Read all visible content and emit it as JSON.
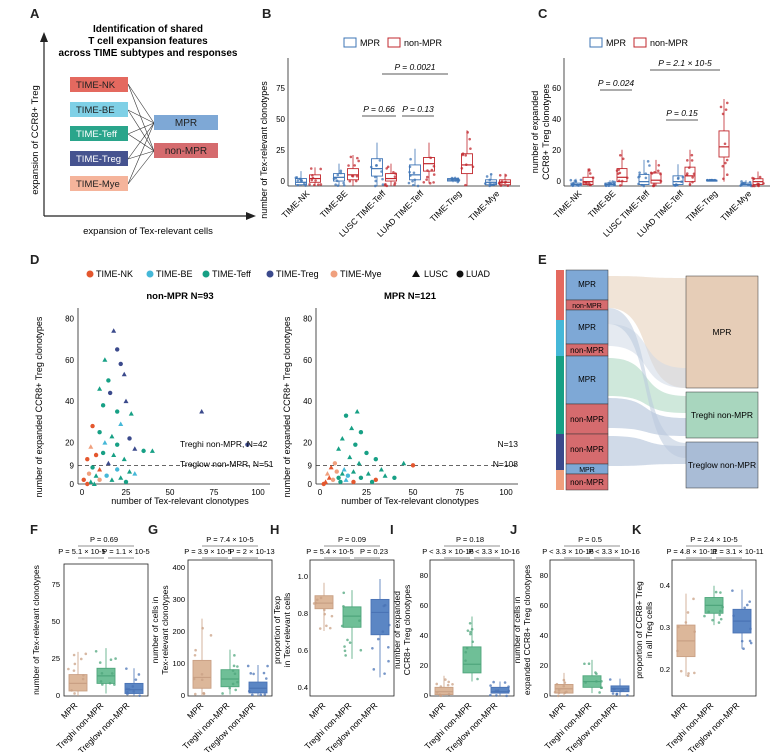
{
  "panels": {
    "A": {
      "label": "A",
      "title_lines": [
        "Identification of shared",
        "T cell expansion features",
        "across TIME subtypes and responses"
      ],
      "subtypes": [
        "TIME-NK",
        "TIME-BE",
        "TIME-Teff",
        "TIME-Treg",
        "TIME-Mye"
      ],
      "responses": [
        "MPR",
        "non-MPR"
      ],
      "ylabel": "expansion of CCR8+ Treg",
      "xlabel": "expansion of Tex-relevant cells"
    },
    "B": {
      "label": "B",
      "legend": [
        "MPR",
        "non-MPR"
      ],
      "ylabel": "number of Tex-relevant clonotypes",
      "categories": [
        "TIME-NK",
        "TIME-BE",
        "LUSC TIME-Teff",
        "LUAD TIME-Teff",
        "TIME-Treg",
        "TIME-Mye"
      ],
      "pvals": [
        "P = 0.66",
        "P = 0.13",
        "P = 0.0021"
      ],
      "yticks": [
        "0",
        "25",
        "50",
        "75"
      ]
    },
    "C": {
      "label": "C",
      "legend": [
        "MPR",
        "non-MPR"
      ],
      "ylabel_lines": [
        "number of expanded",
        "CCR8+ Treg clonotypes"
      ],
      "categories": [
        "TIME-NK",
        "TIME-BE",
        "LUSC TIME-Teff",
        "LUAD TIME-Teff",
        "TIME-Treg",
        "TIME-Mye"
      ],
      "pvals": [
        "P = 0.024",
        "P = 0.15",
        "P = 2.1 × 10-5"
      ],
      "yticks": [
        "0",
        "20",
        "40",
        "60"
      ]
    },
    "D": {
      "label": "D",
      "legend": [
        "TIME-NK",
        "TIME-BE",
        "TIME-Teff",
        "TIME-Treg",
        "TIME-Mye",
        "LUSC",
        "LUAD"
      ],
      "left_title": "non-MPR N=93",
      "right_title": "MPR N=121",
      "left_annot": [
        "Treghi non-MPR, N=42",
        "Treglow non-MPR, N=51"
      ],
      "right_annot": [
        "N=13",
        "N=108"
      ],
      "ylabel": "number of expanded CCR8+ Treg clonotypes",
      "xlabel": "number of Tex-relevant clonotypes",
      "yticks": [
        "0",
        "9",
        "20",
        "40",
        "60",
        "80"
      ],
      "xticks": [
        "0",
        "25",
        "50",
        "75",
        "100"
      ]
    },
    "E": {
      "label": "E",
      "left_nodes": [
        "MPR",
        "non-MPR",
        "MPR",
        "non-MPR",
        "MPR",
        "non-MPR",
        "non-MPR",
        "MPR",
        "non-MPR"
      ],
      "right_nodes": [
        "MPR",
        "Treghi non-MPR",
        "Treglow non-MPR"
      ]
    },
    "F": {
      "label": "F",
      "ylabel": "number of Tex-relevant clonotypes",
      "pvals": [
        "P = 0.69",
        "P = 5.1 × 10-5",
        "P = 1.1 × 10-5"
      ],
      "categories": [
        "MPR",
        "Treghi non-MPR",
        "Treglow non-MPR"
      ],
      "yticks": [
        "0",
        "25",
        "50",
        "75"
      ]
    },
    "G": {
      "label": "G",
      "ylabel_lines": [
        "number of cells in",
        "Tex-relevant clonotypes"
      ],
      "pvals": [
        "P = 7.4 × 10-5",
        "P = 3.9 × 10-5",
        "P = 2 × 10-13"
      ],
      "categories": [
        "MPR",
        "Treghi non-MPR",
        "Treglow non-MPR"
      ],
      "yticks": [
        "0",
        "100",
        "200",
        "300",
        "400"
      ]
    },
    "H": {
      "label": "H",
      "ylabel_lines": [
        "proportion of Texp",
        "in Tex-relevant cells"
      ],
      "pvals": [
        "P = 0.09",
        "P = 5.4 × 10-5",
        "P = 0.23"
      ],
      "categories": [
        "MPR",
        "Treghi non-MPR",
        "Treglow non-MPR"
      ],
      "yticks": [
        "0.4",
        "0.6",
        "0.8",
        "1.0"
      ]
    },
    "I": {
      "label": "I",
      "ylabel_lines": [
        "number of expanded",
        "CCR8+ Treg clonotypes"
      ],
      "pvals": [
        "P = 0.18",
        "P < 3.3 × 10-16",
        "P < 3.3 × 10-16"
      ],
      "categories": [
        "MPR",
        "Treghi non-MPR",
        "Treglow non-MPR"
      ],
      "yticks": [
        "0",
        "20",
        "40",
        "60",
        "80"
      ]
    },
    "J": {
      "label": "J",
      "ylabel_lines": [
        "number of cells in",
        "expanded CCR8+ Treg clonotypes"
      ],
      "pvals": [
        "P = 0.5",
        "P < 3.3 × 10-16",
        "P < 3.3 × 10-16"
      ],
      "categories": [
        "MPR",
        "Treghi non-MPR",
        "Treglow non-MPR"
      ],
      "yticks": [
        "0",
        "20",
        "40",
        "60",
        "80"
      ]
    },
    "K": {
      "label": "K",
      "ylabel_lines": [
        "proportion of CCR8+ Treg",
        "in all Treg cells"
      ],
      "pvals": [
        "P = 2.4 × 10-5",
        "P = 4.8 × 10-11",
        "P = 3.1 × 10-11"
      ],
      "categories": [
        "MPR",
        "Treghi non-MPR",
        "Treglow non-MPR"
      ],
      "yticks": [
        "0.2",
        "0.3",
        "0.4"
      ]
    }
  },
  "colors": {
    "mpr": "#3e74b5",
    "nonmpr": "#c1272d",
    "nk": "#e4572e",
    "be": "#45b8d8",
    "teff": "#17a085",
    "treg": "#3b4a8c",
    "mye": "#f0a07e",
    "mprBox": "#dcb79a",
    "hiBox": "#6fbf97",
    "lowBox": "#5b86c4"
  },
  "chart_data": [
    {
      "type": "box",
      "panel": "B",
      "title": "",
      "ylabel": "number of Tex-relevant clonotypes",
      "categories": [
        "TIME-NK",
        "TIME-BE",
        "LUSC TIME-Teff",
        "LUAD TIME-Teff",
        "TIME-Treg",
        "TIME-Mye"
      ],
      "ylim": [
        0,
        100
      ],
      "series": [
        {
          "name": "MPR",
          "boxes": [
            [
              0,
              1,
              3,
              6,
              12
            ],
            [
              0,
              4,
              7,
              10,
              18
            ],
            [
              0,
              8,
              14,
              22,
              35
            ],
            [
              0,
              5,
              9,
              17,
              30
            ],
            [
              3,
              4,
              5,
              6,
              7
            ],
            [
              0,
              1,
              3,
              5,
              10
            ]
          ]
        },
        {
          "name": "non-MPR",
          "boxes": [
            [
              0,
              3,
              6,
              9,
              15
            ],
            [
              0,
              5,
              9,
              14,
              25
            ],
            [
              0,
              4,
              6,
              10,
              18
            ],
            [
              2,
              12,
              18,
              23,
              35
            ],
            [
              0,
              10,
              17,
              26,
              45
            ],
            [
              0,
              1,
              3,
              5,
              10
            ]
          ]
        }
      ]
    },
    {
      "type": "box",
      "panel": "C",
      "ylabel": "number of expanded CCR8+ Treg clonotypes",
      "categories": [
        "TIME-NK",
        "TIME-BE",
        "LUSC TIME-Teff",
        "LUAD TIME-Teff",
        "TIME-Treg",
        "TIME-Mye"
      ],
      "ylim": [
        0,
        80
      ],
      "series": [
        {
          "name": "MPR",
          "boxes": [
            [
              0,
              0,
              1,
              2,
              5
            ],
            [
              0,
              0,
              1,
              2,
              4
            ],
            [
              0,
              1,
              3,
              8,
              18
            ],
            [
              0,
              1,
              3,
              7,
              15
            ],
            [
              4,
              4,
              4,
              4,
              4
            ],
            [
              0,
              0,
              1,
              2,
              4
            ]
          ]
        },
        {
          "name": "non-MPR",
          "boxes": [
            [
              0,
              1,
              3,
              6,
              12
            ],
            [
              0,
              3,
              6,
              12,
              25
            ],
            [
              0,
              2,
              4,
              9,
              18
            ],
            [
              0,
              3,
              7,
              13,
              25
            ],
            [
              3,
              20,
              27,
              38,
              60
            ],
            [
              0,
              1,
              3,
              5,
              10
            ]
          ]
        }
      ]
    },
    {
      "type": "scatter",
      "panel": "D-left",
      "title": "non-MPR N=93",
      "xlabel": "number of Tex-relevant clonotypes",
      "ylabel": "number of expanded CCR8+ Treg clonotypes",
      "xlim": [
        0,
        100
      ],
      "ylim": [
        0,
        80
      ],
      "threshold_y": 9,
      "points": [
        [
          18,
          74
        ],
        [
          20,
          65
        ],
        [
          13,
          60
        ],
        [
          22,
          58
        ],
        [
          24,
          53
        ],
        [
          15,
          50
        ],
        [
          10,
          46
        ],
        [
          16,
          44
        ],
        [
          25,
          40
        ],
        [
          12,
          38
        ],
        [
          68,
          35
        ],
        [
          20,
          35
        ],
        [
          28,
          34
        ],
        [
          6,
          28
        ],
        [
          22,
          29
        ],
        [
          10,
          25
        ],
        [
          17,
          23
        ],
        [
          27,
          22
        ],
        [
          13,
          20
        ],
        [
          20,
          19
        ],
        [
          5,
          18
        ],
        [
          35,
          16
        ],
        [
          40,
          16
        ],
        [
          94,
          19
        ],
        [
          30,
          17
        ],
        [
          12,
          15
        ],
        [
          18,
          14
        ],
        [
          8,
          14
        ],
        [
          24,
          12
        ],
        [
          3,
          12
        ],
        [
          15,
          10
        ],
        [
          6,
          8
        ],
        [
          10,
          7
        ],
        [
          20,
          7
        ],
        [
          27,
          6
        ],
        [
          4,
          5
        ],
        [
          8,
          4
        ],
        [
          14,
          4
        ],
        [
          22,
          3
        ],
        [
          1,
          2
        ],
        [
          5,
          1
        ],
        [
          10,
          2
        ],
        [
          17,
          2
        ],
        [
          25,
          1
        ],
        [
          30,
          5
        ],
        [
          3,
          0
        ],
        [
          7,
          0
        ]
      ],
      "groups": [
        "treg",
        "treg",
        "teff",
        "treg",
        "treg",
        "teff",
        "teff",
        "treg",
        "treg",
        "teff",
        "treg",
        "teff",
        "teff",
        "nk",
        "be",
        "teff",
        "teff",
        "treg",
        "be",
        "teff",
        "mye",
        "teff",
        "teff",
        "treg",
        "treg",
        "teff",
        "teff",
        "nk",
        "teff",
        "nk",
        "treg",
        "teff",
        "nk",
        "be",
        "teff",
        "mye",
        "teff",
        "be",
        "teff",
        "nk",
        "teff",
        "mye",
        "teff",
        "teff",
        "be",
        "nk",
        "teff"
      ]
    },
    {
      "type": "scatter",
      "panel": "D-right",
      "title": "MPR N=121",
      "xlabel": "number of Tex-relevant clonotypes",
      "ylabel": "number of expanded CCR8+ Treg clonotypes",
      "xlim": [
        0,
        100
      ],
      "ylim": [
        0,
        80
      ],
      "threshold_y": 9,
      "points": [
        [
          20,
          35
        ],
        [
          14,
          33
        ],
        [
          17,
          27
        ],
        [
          22,
          25
        ],
        [
          12,
          22
        ],
        [
          19,
          19
        ],
        [
          10,
          17
        ],
        [
          25,
          15
        ],
        [
          16,
          13
        ],
        [
          30,
          12
        ],
        [
          45,
          10
        ],
        [
          50,
          9
        ],
        [
          21,
          10
        ],
        [
          8,
          10
        ],
        [
          6,
          8
        ],
        [
          9,
          6
        ],
        [
          12,
          5
        ],
        [
          15,
          4
        ],
        [
          18,
          6
        ],
        [
          22,
          3
        ],
        [
          26,
          5
        ],
        [
          30,
          2
        ],
        [
          35,
          4
        ],
        [
          40,
          3
        ],
        [
          5,
          3
        ],
        [
          7,
          2
        ],
        [
          3,
          1
        ],
        [
          11,
          1
        ],
        [
          14,
          2
        ],
        [
          28,
          1
        ],
        [
          33,
          7
        ],
        [
          2,
          0
        ],
        [
          4,
          5
        ],
        [
          10,
          3
        ],
        [
          13,
          7
        ],
        [
          18,
          1
        ]
      ],
      "groups": [
        "teff",
        "teff",
        "teff",
        "teff",
        "teff",
        "teff",
        "teff",
        "teff",
        "teff",
        "teff",
        "teff",
        "nk",
        "teff",
        "mye",
        "nk",
        "mye",
        "teff",
        "be",
        "teff",
        "teff",
        "teff",
        "nk",
        "teff",
        "teff",
        "nk",
        "mye",
        "nk",
        "teff",
        "be",
        "teff",
        "teff",
        "nk",
        "mye",
        "teff",
        "be",
        "nk"
      ]
    },
    {
      "type": "box",
      "panel": "F",
      "ylabel": "number of Tex-relevant clonotypes",
      "categories": [
        "MPR",
        "Treghi non-MPR",
        "Treglow non-MPR"
      ],
      "ylim": [
        0,
        100
      ],
      "boxes": [
        [
          0,
          4,
          10,
          17,
          35
        ],
        [
          2,
          10,
          16,
          22,
          38
        ],
        [
          0,
          2,
          5,
          10,
          22
        ]
      ]
    },
    {
      "type": "box",
      "panel": "G",
      "ylabel": "number of cells in Tex-relevant clonotypes",
      "categories": [
        "MPR",
        "Treghi non-MPR",
        "Treglow non-MPR"
      ],
      "ylim": [
        0,
        420
      ],
      "boxes": [
        [
          0,
          25,
          60,
          115,
          250
        ],
        [
          5,
          30,
          55,
          85,
          150
        ],
        [
          0,
          10,
          25,
          45,
          100
        ]
      ]
    },
    {
      "type": "box",
      "panel": "H",
      "ylabel": "proportion of Texp in Tex-relevant cells",
      "categories": [
        "MPR",
        "Treghi non-MPR",
        "Treglow non-MPR"
      ],
      "ylim": [
        0.35,
        1.05
      ],
      "boxes": [
        [
          0.7,
          0.82,
          0.85,
          0.89,
          0.96
        ],
        [
          0.55,
          0.72,
          0.78,
          0.83,
          0.92
        ],
        [
          0.45,
          0.68,
          0.8,
          0.87,
          0.98
        ]
      ]
    },
    {
      "type": "box",
      "panel": "I",
      "ylabel": "number of expanded CCR8+ Treg clonotypes",
      "categories": [
        "MPR",
        "Treghi non-MPR",
        "Treglow non-MPR"
      ],
      "ylim": [
        0,
        90
      ],
      "boxes": [
        [
          0,
          1,
          3,
          6,
          14
        ],
        [
          10,
          16,
          22,
          34,
          55
        ],
        [
          0,
          2,
          3,
          6,
          10
        ]
      ]
    },
    {
      "type": "box",
      "panel": "J",
      "ylabel": "number of cells in expanded CCR8+ Treg clonotypes",
      "categories": [
        "MPR",
        "Treghi non-MPR",
        "Treglow non-MPR"
      ],
      "ylim": [
        0,
        90
      ],
      "boxes": [
        [
          0,
          2,
          5,
          8,
          16
        ],
        [
          2,
          6,
          10,
          14,
          25
        ],
        [
          0,
          3,
          5,
          7,
          12
        ]
      ]
    },
    {
      "type": "box",
      "panel": "K",
      "ylabel": "proportion of CCR8+ Treg in all Treg cells",
      "categories": [
        "MPR",
        "Treghi non-MPR",
        "Treglow non-MPR"
      ],
      "ylim": [
        0.12,
        0.45
      ],
      "boxes": [
        [
          0.17,
          0.22,
          0.26,
          0.3,
          0.38
        ],
        [
          0.3,
          0.33,
          0.35,
          0.37,
          0.4
        ],
        [
          0.24,
          0.28,
          0.31,
          0.34,
          0.39
        ]
      ]
    }
  ]
}
